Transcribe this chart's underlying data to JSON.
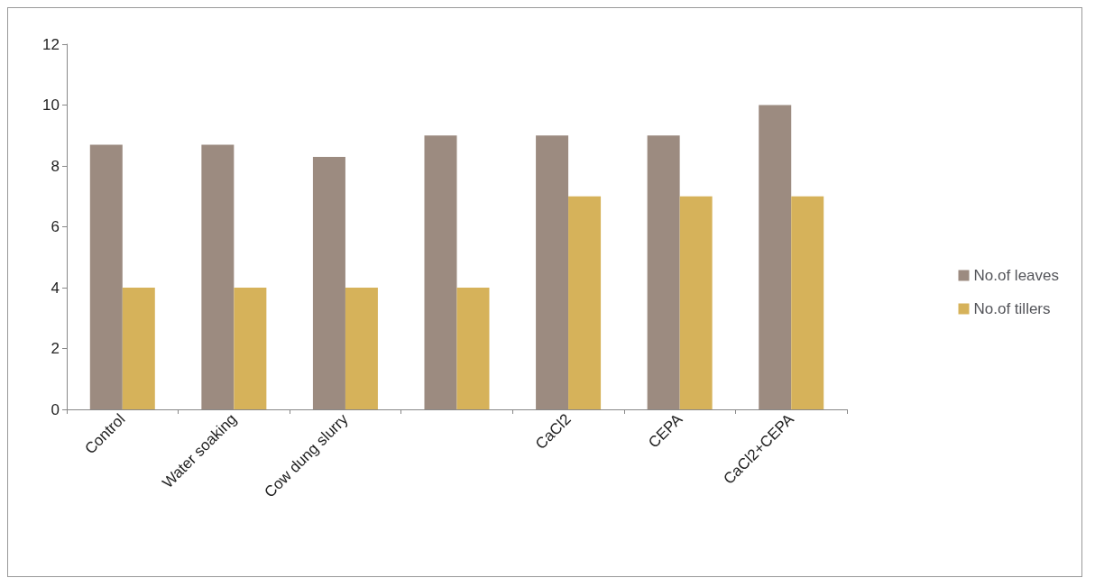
{
  "chart_data": {
    "type": "bar",
    "categories": [
      "Control",
      "Water soaking",
      "Cow dung slurry",
      null,
      "CaCl2",
      "CEPA",
      "CaCl2+CEPA"
    ],
    "series": [
      {
        "name": "No.of leaves",
        "color": "#9c8b80",
        "values": [
          8.7,
          8.7,
          8.3,
          9,
          9,
          9,
          10
        ]
      },
      {
        "name": "No.of tillers",
        "color": "#d6b25a",
        "values": [
          4,
          4,
          4,
          4,
          7,
          7,
          7
        ]
      }
    ],
    "ylim": [
      0,
      12
    ],
    "yticks": [
      0,
      2,
      4,
      6,
      8,
      10,
      12
    ],
    "grid": false,
    "legend": "right"
  }
}
